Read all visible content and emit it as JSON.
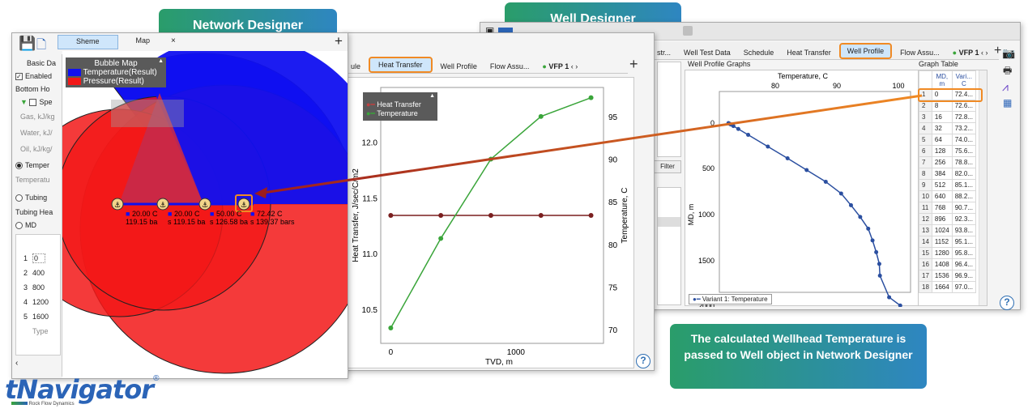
{
  "banners": {
    "network": "Network Designer",
    "well": "Well Designer",
    "note": "The calculated Wellhead Temperature is passed to Well object in Network Designer"
  },
  "logo": {
    "brand": "tNavigator",
    "reg": "®",
    "sub": "Rock Flow Dynamics"
  },
  "well_window": {
    "tabs": [
      "Well Test Data",
      "Schedule",
      "Heat Transfer",
      "Well Profile",
      "Flow Assu...",
      "VFP 1"
    ],
    "tab_prefix": "str...",
    "selected_tab": "Well Profile",
    "graphs_title": "Well Profile Graphs",
    "table_title": "Graph Table",
    "filter_label": "Filter",
    "plot": {
      "xlabel": "Temperature, C",
      "ylabel": "MD, m",
      "xticks": [
        "80",
        "90",
        "100"
      ],
      "yticks": [
        "0",
        "500",
        "1000",
        "1500",
        "2000"
      ],
      "legend": "Variant 1: Temperature"
    },
    "table_headers": [
      "",
      "MD,\nm",
      "Vari...\nC"
    ],
    "table_rows": [
      [
        "1",
        "0",
        "72.4..."
      ],
      [
        "2",
        "8",
        "72.6..."
      ],
      [
        "3",
        "16",
        "72.8..."
      ],
      [
        "4",
        "32",
        "73.2..."
      ],
      [
        "5",
        "64",
        "74.0..."
      ],
      [
        "6",
        "128",
        "75.6..."
      ],
      [
        "7",
        "256",
        "78.8..."
      ],
      [
        "8",
        "384",
        "82.0..."
      ],
      [
        "9",
        "512",
        "85.1..."
      ],
      [
        "10",
        "640",
        "88.2..."
      ],
      [
        "11",
        "768",
        "90.7..."
      ],
      [
        "12",
        "896",
        "92.3..."
      ],
      [
        "13",
        "1024",
        "93.8..."
      ],
      [
        "14",
        "1152",
        "95.1..."
      ],
      [
        "15",
        "1280",
        "95.8..."
      ],
      [
        "16",
        "1408",
        "96.4..."
      ],
      [
        "17",
        "1536",
        "96.9..."
      ],
      [
        "18",
        "1664",
        "97.0..."
      ]
    ]
  },
  "heat_window": {
    "tabs": [
      "ule",
      "Heat Transfer",
      "Well Profile",
      "Flow Assu...",
      "VFP 1"
    ],
    "selected_tab": "Heat Transfer",
    "legend": [
      "Heat Transfer",
      "Temperature"
    ],
    "ylabel_left": "Heat Transfer, J/sec/C/m2",
    "ylabel_right": "Temperature, C",
    "xlabel": "TVD, m",
    "yticks_left": [
      "10.5",
      "11.0",
      "11.5",
      "12.0"
    ],
    "yticks_right": [
      "70",
      "75",
      "80",
      "85",
      "90",
      "95"
    ],
    "xticks": [
      "0",
      "1000"
    ]
  },
  "network_window": {
    "tabs": [
      "Sheme",
      "Map"
    ],
    "selected_tab": "Sheme",
    "left_panel": {
      "basic": "Basic Da",
      "enabled": "Enabled",
      "bottom": "Bottom Ho",
      "spec": "Spe",
      "gas": "Gas, kJ/kg",
      "water": "Water, kJ/",
      "oil": "Oil, kJ/kg/",
      "temper": "Temper",
      "temperatu": "Temperatu",
      "tubing": "Tubing",
      "tubing_hea": "Tubing Hea",
      "md": "MD",
      "rows": [
        [
          "1",
          "0"
        ],
        [
          "2",
          "400"
        ],
        [
          "3",
          "800"
        ],
        [
          "4",
          "1200"
        ],
        [
          "5",
          "1600"
        ]
      ],
      "type_placeholder": "Type"
    },
    "bubble_legend": {
      "title": "Bubble Map",
      "items": [
        "Temperature(Result)",
        "Pressure(Result)"
      ]
    },
    "wells": [
      {
        "temp": "20.00 C",
        "pres": "119.15 ba"
      },
      {
        "temp": "20.00 C",
        "pres": "s 119.15 ba"
      },
      {
        "temp": "50.00 C",
        "pres": "s 126.58 ba"
      },
      {
        "temp": "72.42 C",
        "pres": "s 139.37 bars"
      }
    ]
  },
  "chart_data": {
    "type": "line",
    "xlabel": "TVD, m",
    "series": [
      {
        "name": "Heat Transfer",
        "axis": "left",
        "x": [
          0,
          400,
          800,
          1200,
          1600
        ],
        "values": [
          11.35,
          11.35,
          11.35,
          11.35,
          11.35
        ]
      },
      {
        "name": "Temperature",
        "axis": "right",
        "x": [
          0,
          400,
          800,
          1200,
          1600
        ],
        "values": [
          70.3,
          80.8,
          90.1,
          95.1,
          97.3
        ]
      }
    ],
    "ylim_left": [
      10.2,
      12.5
    ],
    "ylim_right": [
      68.5,
      98.5
    ],
    "xlim": [
      -80,
      1700
    ],
    "colors": {
      "Heat Transfer": "#7a1f1f",
      "Temperature": "#3aa53a"
    }
  },
  "well_profile_data": {
    "temperature_C": [
      72.4,
      72.6,
      72.8,
      73.2,
      74.0,
      75.6,
      78.8,
      82.0,
      85.1,
      88.2,
      90.7,
      92.3,
      93.8,
      95.1,
      95.8,
      96.4,
      96.9,
      97.0,
      98.5,
      100.3
    ],
    "md_m": [
      0,
      8,
      16,
      32,
      64,
      128,
      256,
      384,
      512,
      640,
      768,
      896,
      1024,
      1152,
      1280,
      1408,
      1536,
      1664,
      1900,
      1990
    ]
  }
}
